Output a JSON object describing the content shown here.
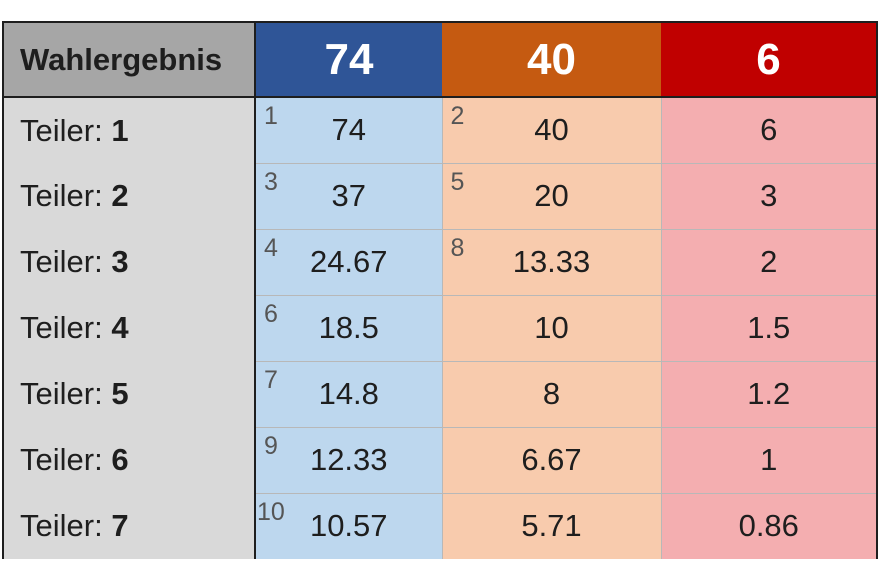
{
  "header": {
    "label": "Wahlergebnis",
    "parties": [
      "74",
      "40",
      "6"
    ]
  },
  "divisor_prefix": "Teiler:",
  "rows": [
    {
      "divisor": "1",
      "cells": [
        {
          "rank": "1",
          "value": "74"
        },
        {
          "rank": "2",
          "value": "40"
        },
        {
          "rank": "",
          "value": "6"
        }
      ]
    },
    {
      "divisor": "2",
      "cells": [
        {
          "rank": "3",
          "value": "37"
        },
        {
          "rank": "5",
          "value": "20"
        },
        {
          "rank": "",
          "value": "3"
        }
      ]
    },
    {
      "divisor": "3",
      "cells": [
        {
          "rank": "4",
          "value": "24.67"
        },
        {
          "rank": "8",
          "value": "13.33"
        },
        {
          "rank": "",
          "value": "2"
        }
      ]
    },
    {
      "divisor": "4",
      "cells": [
        {
          "rank": "6",
          "value": "18.5"
        },
        {
          "rank": "",
          "value": "10"
        },
        {
          "rank": "",
          "value": "1.5"
        }
      ]
    },
    {
      "divisor": "5",
      "cells": [
        {
          "rank": "7",
          "value": "14.8"
        },
        {
          "rank": "",
          "value": "8"
        },
        {
          "rank": "",
          "value": "1.2"
        }
      ]
    },
    {
      "divisor": "6",
      "cells": [
        {
          "rank": "9",
          "value": "12.33"
        },
        {
          "rank": "",
          "value": "6.67"
        },
        {
          "rank": "",
          "value": "1"
        }
      ]
    },
    {
      "divisor": "7",
      "cells": [
        {
          "rank": "10",
          "value": "10.57"
        },
        {
          "rank": "",
          "value": "5.71"
        },
        {
          "rank": "",
          "value": "0.86"
        }
      ]
    }
  ],
  "colors": {
    "party_0": "#2f5597",
    "party_1": "#c55a11",
    "party_2": "#c00000",
    "cell_0": "#bdd7ee",
    "cell_1": "#f8cbad",
    "cell_2": "#f4aeb0",
    "label_header": "#a6a6a6",
    "label_column": "#d9d9d9"
  }
}
